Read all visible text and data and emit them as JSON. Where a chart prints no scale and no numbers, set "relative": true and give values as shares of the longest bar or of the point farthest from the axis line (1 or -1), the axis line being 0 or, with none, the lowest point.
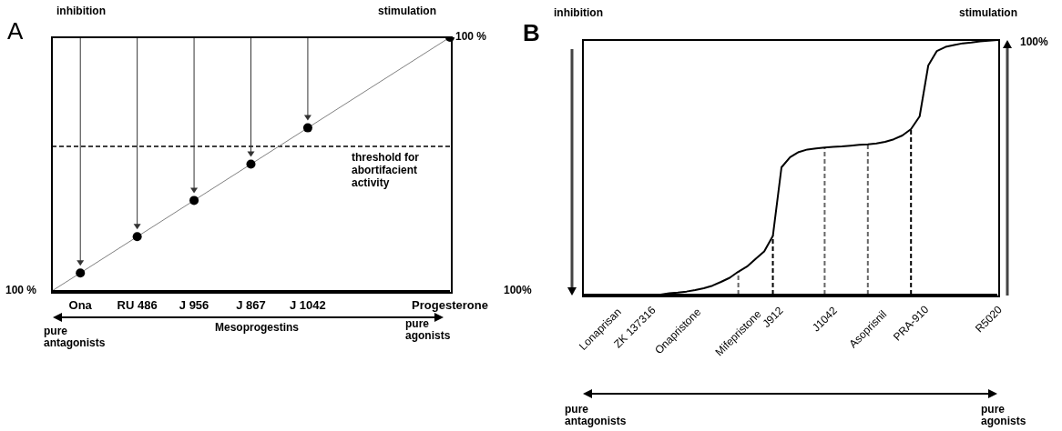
{
  "chart_data": [
    {
      "type": "line",
      "relative": true,
      "categories": [
        null,
        "Ona",
        null,
        "RU 486",
        null,
        "J 956",
        null,
        "J 867",
        null,
        "J 1042",
        null,
        null,
        null,
        null,
        "Progesterone"
      ],
      "series": [
        {
          "type": "line",
          "color": "#808080",
          "marker": "none",
          "values": [
            0,
            0.071,
            null,
            0.214,
            null,
            0.357,
            null,
            0.5,
            null,
            0.643,
            null,
            null,
            null,
            null,
            1
          ]
        },
        {
          "type": "scatter",
          "color": "#000000",
          "marker": "circle",
          "values": [
            null,
            0.071,
            null,
            0.214,
            null,
            0.357,
            null,
            0.5,
            null,
            0.643,
            null,
            null,
            null,
            null,
            1
          ]
        }
      ],
      "ref_lines": [
        {
          "axis": "y",
          "value": 0.57,
          "label": "threshold for abortifacient activity",
          "color": "#000000",
          "line_style": "dashed"
        }
      ],
      "annotations": [
        "A",
        "inhibition",
        "stimulation",
        "100 %",
        "100 %",
        "Mesoprogestins",
        "pure antagonists",
        "pure agonists"
      ]
    },
    {
      "type": "line",
      "relative": true,
      "categories": [
        null,
        null,
        "Lonaprisan",
        null,
        null,
        null,
        "ZK 137316",
        null,
        null,
        null,
        null,
        "Onapristone",
        null,
        null,
        null,
        null,
        null,
        null,
        "Mifepristone",
        null,
        null,
        null,
        "J912",
        null,
        null,
        null,
        null,
        null,
        "J1042",
        null,
        null,
        null,
        null,
        "Asoprisnil",
        null,
        null,
        null,
        null,
        "PRA-910",
        null,
        null,
        null,
        null,
        null,
        null,
        null,
        null,
        "R5020",
        null
      ],
      "series": [
        {
          "type": "line",
          "color": "#000000",
          "marker": "none",
          "values": [
            0,
            0,
            0,
            0,
            0,
            0,
            0,
            0,
            0,
            0,
            0.005,
            0.008,
            0.012,
            0.018,
            0.025,
            0.035,
            0.05,
            0.066,
            0.09,
            0.11,
            0.14,
            0.17,
            0.23,
            0.5,
            0.54,
            0.56,
            0.57,
            0.574,
            0.578,
            0.58,
            0.582,
            0.585,
            0.588,
            0.59,
            0.594,
            0.6,
            0.61,
            0.625,
            0.65,
            0.7,
            0.9,
            0.957,
            0.973,
            0.98,
            0.987,
            0.99,
            0.995,
            0.997,
            1
          ]
        }
      ],
      "ref_lines": [
        {
          "axis": "x",
          "value": "Mifepristone",
          "color": "#666666",
          "line_style": "dashed"
        },
        {
          "axis": "x",
          "value": "J912",
          "color": "#000000",
          "line_style": "dashed"
        },
        {
          "axis": "x",
          "value": "J1042",
          "color": "#666666",
          "line_style": "dashed"
        },
        {
          "axis": "x",
          "value": "Asoprisnil",
          "color": "#666666",
          "line_style": "dashed"
        },
        {
          "axis": "x",
          "value": "PRA-910",
          "color": "#000000",
          "line_style": "dashed"
        }
      ],
      "annotations": [
        "B",
        "inhibition",
        "stimulation",
        "100%",
        "100%",
        "pure antagonists",
        "pure agonists"
      ]
    }
  ]
}
